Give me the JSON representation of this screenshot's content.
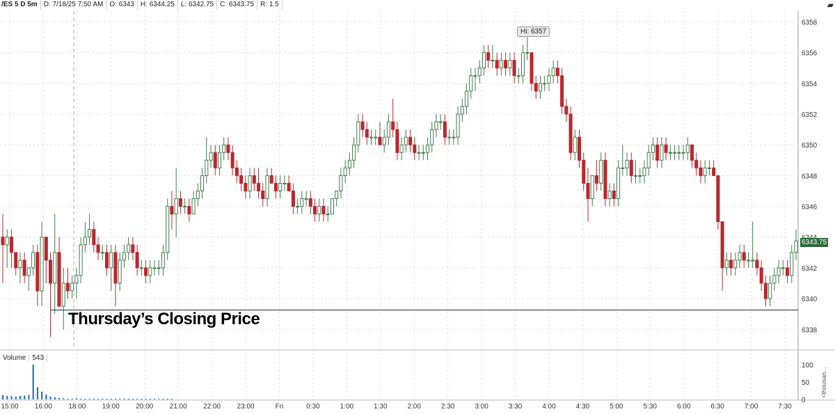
{
  "header": {
    "symbol": "/ES 5 D 5m",
    "date": "D: 7/18/25 7:50 AM",
    "open": "O: 6343",
    "high": "H: 6344.25",
    "low": "L: 6342.75",
    "close": "C: 6343.75",
    "range": "R: 1.5"
  },
  "hi_label": "Hi: 6357",
  "last_price": "6343.75",
  "annotation": "Thursday’s Closing Price",
  "volume": {
    "label": "Volume",
    "value": "543",
    "unit": "<thousan..."
  },
  "colors": {
    "up": "#3f7a4a",
    "down": "#b8282e",
    "volume": "#2f6fc4",
    "grid": "#d8d8d8"
  },
  "chart_data": {
    "type": "candlestick",
    "title": "",
    "y_ticks": [
      6338,
      6340,
      6342,
      6344,
      6346,
      6348,
      6350,
      6352,
      6354,
      6356,
      6358
    ],
    "ylim": [
      6336.7,
      6358.7
    ],
    "x_ticks": [
      "15:00",
      "16:00",
      "18:00",
      "19:00",
      "20:00",
      "21:00",
      "22:00",
      "23:00",
      "Fri",
      "0:30",
      "1:00",
      "1:30",
      "2:00",
      "2:30",
      "3:00",
      "3:30",
      "4:00",
      "4:30",
      "5:00",
      "5:30",
      "6:00",
      "6:30",
      "7:00",
      "7:30"
    ],
    "reference_line": {
      "price": 6339.25,
      "label": "Thursday’s Closing Price"
    },
    "session_break_after_tick": "16:00",
    "volume_ticks": [
      0,
      50,
      100
    ],
    "candles": [
      [
        6344.0,
        6345.5,
        6341.0,
        6343.5
      ],
      [
        6343.5,
        6344.5,
        6342.0,
        6344.0
      ],
      [
        6344.0,
        6344.5,
        6342.0,
        6343.0
      ],
      [
        6343.0,
        6343.0,
        6341.5,
        6342.0
      ],
      [
        6342.0,
        6343.0,
        6341.0,
        6342.5
      ],
      [
        6342.5,
        6343.0,
        6341.0,
        6341.5
      ],
      [
        6341.5,
        6342.0,
        6340.5,
        6342.0
      ],
      [
        6342.0,
        6343.5,
        6341.5,
        6343.0
      ],
      [
        6343.0,
        6343.5,
        6339.5,
        6340.5
      ],
      [
        6340.5,
        6345.0,
        6339.5,
        6344.0
      ],
      [
        6344.0,
        6344.0,
        6341.0,
        6342.5
      ],
      [
        6342.5,
        6343.0,
        6337.5,
        6341.0
      ],
      [
        6341.0,
        6345.5,
        6339.0,
        6343.0
      ],
      [
        6343.0,
        6344.0,
        6339.5,
        6339.5
      ],
      [
        6339.5,
        6342.0,
        6338.0,
        6341.0
      ],
      [
        6341.0,
        6342.0,
        6340.0,
        6340.5
      ],
      [
        6340.5,
        6341.5,
        6340.0,
        6341.0
      ],
      [
        6341.0,
        6342.0,
        6340.0,
        6341.5
      ],
      [
        6341.5,
        6344.0,
        6341.0,
        6343.5
      ],
      [
        6343.5,
        6345.0,
        6343.0,
        6344.0
      ],
      [
        6344.0,
        6345.5,
        6343.5,
        6344.5
      ],
      [
        6344.5,
        6345.0,
        6343.0,
        6343.5
      ],
      [
        6343.5,
        6344.0,
        6342.5,
        6343.0
      ],
      [
        6343.0,
        6343.5,
        6342.5,
        6343.0
      ],
      [
        6343.0,
        6343.5,
        6341.5,
        6342.0
      ],
      [
        6342.0,
        6343.5,
        6340.5,
        6343.0
      ],
      [
        6343.0,
        6343.5,
        6339.5,
        6341.0
      ],
      [
        6341.0,
        6343.0,
        6340.5,
        6342.5
      ],
      [
        6342.5,
        6343.5,
        6342.0,
        6343.0
      ],
      [
        6343.0,
        6344.0,
        6342.5,
        6343.5
      ],
      [
        6343.5,
        6344.0,
        6342.5,
        6343.0
      ],
      [
        6343.0,
        6343.5,
        6341.5,
        6342.0
      ],
      [
        6342.0,
        6342.5,
        6341.5,
        6342.0
      ],
      [
        6342.0,
        6342.5,
        6341.0,
        6341.5
      ],
      [
        6341.5,
        6342.5,
        6341.0,
        6342.0
      ],
      [
        6342.0,
        6342.5,
        6341.5,
        6342.0
      ],
      [
        6342.0,
        6342.5,
        6341.5,
        6342.0
      ],
      [
        6342.0,
        6343.5,
        6341.5,
        6343.0
      ],
      [
        6343.0,
        6346.5,
        6342.5,
        6346.0
      ],
      [
        6346.0,
        6347.0,
        6344.5,
        6345.5
      ],
      [
        6345.5,
        6348.5,
        6344.0,
        6346.5
      ],
      [
        6346.5,
        6347.0,
        6345.5,
        6346.0
      ],
      [
        6346.0,
        6346.5,
        6345.5,
        6346.0
      ],
      [
        6346.0,
        6346.5,
        6345.0,
        6345.5
      ],
      [
        6345.5,
        6347.0,
        6345.5,
        6346.5
      ],
      [
        6346.5,
        6347.5,
        6346.0,
        6347.0
      ],
      [
        6347.0,
        6348.5,
        6346.5,
        6348.0
      ],
      [
        6348.0,
        6350.5,
        6347.5,
        6349.0
      ],
      [
        6349.0,
        6350.0,
        6348.5,
        6349.5
      ],
      [
        6349.5,
        6350.0,
        6348.0,
        6348.5
      ],
      [
        6348.5,
        6350.0,
        6348.0,
        6349.5
      ],
      [
        6349.5,
        6350.5,
        6349.0,
        6350.0
      ],
      [
        6350.0,
        6350.5,
        6349.0,
        6349.5
      ],
      [
        6349.5,
        6350.0,
        6348.0,
        6348.5
      ],
      [
        6348.5,
        6349.0,
        6347.5,
        6348.0
      ],
      [
        6348.0,
        6348.5,
        6347.0,
        6347.5
      ],
      [
        6347.5,
        6348.0,
        6346.5,
        6347.0
      ],
      [
        6347.0,
        6348.5,
        6346.5,
        6348.0
      ],
      [
        6348.0,
        6348.5,
        6347.0,
        6347.5
      ],
      [
        6347.5,
        6348.5,
        6346.5,
        6347.0
      ],
      [
        6347.0,
        6347.5,
        6346.0,
        6346.5
      ],
      [
        6346.5,
        6348.5,
        6346.0,
        6348.0
      ],
      [
        6348.0,
        6348.5,
        6347.5,
        6347.5
      ],
      [
        6347.5,
        6348.0,
        6346.5,
        6347.0
      ],
      [
        6347.0,
        6348.0,
        6346.5,
        6347.5
      ],
      [
        6347.5,
        6348.0,
        6347.0,
        6347.5
      ],
      [
        6347.5,
        6348.0,
        6347.0,
        6347.0
      ],
      [
        6347.0,
        6347.5,
        6345.5,
        6346.0
      ],
      [
        6346.0,
        6346.5,
        6345.5,
        6346.0
      ],
      [
        6346.0,
        6347.0,
        6345.5,
        6346.5
      ],
      [
        6346.5,
        6347.0,
        6346.0,
        6346.5
      ],
      [
        6346.5,
        6347.0,
        6345.5,
        6346.0
      ],
      [
        6346.0,
        6346.5,
        6345.0,
        6345.5
      ],
      [
        6345.5,
        6346.5,
        6345.0,
        6346.0
      ],
      [
        6346.0,
        6346.5,
        6345.0,
        6345.5
      ],
      [
        6345.5,
        6346.0,
        6345.0,
        6345.5
      ],
      [
        6345.5,
        6346.5,
        6345.5,
        6346.5
      ],
      [
        6346.5,
        6347.0,
        6346.0,
        6347.0
      ],
      [
        6347.0,
        6348.5,
        6346.5,
        6348.0
      ],
      [
        6348.0,
        6349.0,
        6347.5,
        6348.5
      ],
      [
        6348.5,
        6349.5,
        6348.0,
        6349.0
      ],
      [
        6349.0,
        6350.5,
        6348.5,
        6350.0
      ],
      [
        6350.0,
        6352.0,
        6349.5,
        6351.5
      ],
      [
        6351.5,
        6352.0,
        6350.5,
        6351.0
      ],
      [
        6351.0,
        6351.5,
        6350.0,
        6350.5
      ],
      [
        6350.5,
        6351.0,
        6350.0,
        6350.5
      ],
      [
        6350.5,
        6351.0,
        6350.0,
        6350.5
      ],
      [
        6350.5,
        6351.5,
        6350.0,
        6350.0
      ],
      [
        6350.0,
        6351.0,
        6349.5,
        6350.5
      ],
      [
        6350.5,
        6352.0,
        6350.0,
        6351.5
      ],
      [
        6351.5,
        6353.0,
        6350.5,
        6351.0
      ],
      [
        6351.0,
        6351.5,
        6349.0,
        6349.5
      ],
      [
        6349.5,
        6350.5,
        6349.0,
        6350.0
      ],
      [
        6350.0,
        6351.0,
        6349.5,
        6350.5
      ],
      [
        6350.5,
        6351.0,
        6349.5,
        6350.0
      ],
      [
        6350.0,
        6350.5,
        6349.0,
        6349.5
      ],
      [
        6349.5,
        6350.0,
        6349.0,
        6349.5
      ],
      [
        6349.5,
        6350.0,
        6349.0,
        6349.5
      ],
      [
        6349.5,
        6350.5,
        6349.0,
        6350.0
      ],
      [
        6350.0,
        6351.5,
        6349.5,
        6351.0
      ],
      [
        6351.0,
        6352.0,
        6350.5,
        6351.5
      ],
      [
        6351.5,
        6352.0,
        6351.0,
        6351.5
      ],
      [
        6351.5,
        6352.0,
        6350.0,
        6350.5
      ],
      [
        6350.5,
        6351.0,
        6350.0,
        6350.5
      ],
      [
        6350.5,
        6351.0,
        6350.0,
        6350.5
      ],
      [
        6350.5,
        6352.5,
        6350.0,
        6352.0
      ],
      [
        6352.0,
        6353.0,
        6351.5,
        6352.5
      ],
      [
        6352.5,
        6354.0,
        6352.0,
        6353.5
      ],
      [
        6353.5,
        6355.0,
        6353.0,
        6354.5
      ],
      [
        6354.5,
        6355.0,
        6353.5,
        6354.5
      ],
      [
        6354.5,
        6355.5,
        6354.0,
        6355.0
      ],
      [
        6355.0,
        6356.5,
        6354.5,
        6356.0
      ],
      [
        6356.0,
        6356.5,
        6355.0,
        6355.5
      ],
      [
        6355.5,
        6356.5,
        6355.0,
        6355.5
      ],
      [
        6355.5,
        6356.0,
        6354.5,
        6355.0
      ],
      [
        6355.0,
        6356.0,
        6354.5,
        6355.5
      ],
      [
        6355.5,
        6356.0,
        6354.5,
        6355.0
      ],
      [
        6355.0,
        6356.0,
        6354.5,
        6355.5
      ],
      [
        6355.5,
        6356.0,
        6354.0,
        6354.5
      ],
      [
        6354.5,
        6355.0,
        6354.0,
        6354.5
      ],
      [
        6354.5,
        6356.5,
        6354.0,
        6356.0
      ],
      [
        6356.0,
        6357.0,
        6355.5,
        6356.0
      ],
      [
        6356.0,
        6356.0,
        6353.5,
        6354.0
      ],
      [
        6354.0,
        6354.5,
        6353.0,
        6353.5
      ],
      [
        6353.5,
        6354.5,
        6353.0,
        6354.0
      ],
      [
        6354.0,
        6354.5,
        6353.5,
        6354.0
      ],
      [
        6354.0,
        6355.0,
        6353.5,
        6354.5
      ],
      [
        6354.5,
        6355.5,
        6354.0,
        6355.0
      ],
      [
        6355.0,
        6355.5,
        6354.0,
        6354.5
      ],
      [
        6354.5,
        6355.0,
        6352.0,
        6352.5
      ],
      [
        6352.5,
        6353.0,
        6351.5,
        6352.0
      ],
      [
        6352.0,
        6352.5,
        6349.0,
        6349.5
      ],
      [
        6349.5,
        6351.0,
        6349.0,
        6350.5
      ],
      [
        6350.5,
        6351.0,
        6348.5,
        6349.0
      ],
      [
        6349.0,
        6349.5,
        6347.0,
        6347.5
      ],
      [
        6347.5,
        6348.5,
        6345.0,
        6346.5
      ],
      [
        6346.5,
        6348.0,
        6346.0,
        6348.0
      ],
      [
        6348.0,
        6349.0,
        6347.0,
        6347.5
      ],
      [
        6347.5,
        6349.5,
        6347.0,
        6349.0
      ],
      [
        6349.0,
        6349.5,
        6346.0,
        6346.5
      ],
      [
        6346.5,
        6347.5,
        6346.0,
        6347.0
      ],
      [
        6347.0,
        6347.5,
        6346.0,
        6346.5
      ],
      [
        6346.5,
        6349.0,
        6346.0,
        6348.5
      ],
      [
        6348.5,
        6350.0,
        6348.0,
        6348.5
      ],
      [
        6348.5,
        6349.5,
        6348.0,
        6349.0
      ],
      [
        6349.0,
        6349.5,
        6347.5,
        6348.0
      ],
      [
        6348.0,
        6349.0,
        6347.5,
        6348.0
      ],
      [
        6348.0,
        6348.5,
        6347.5,
        6348.0
      ],
      [
        6348.0,
        6349.0,
        6347.5,
        6348.5
      ],
      [
        6348.5,
        6350.0,
        6348.0,
        6349.5
      ],
      [
        6349.5,
        6350.5,
        6349.0,
        6350.0
      ],
      [
        6350.0,
        6350.5,
        6348.5,
        6349.0
      ],
      [
        6349.0,
        6350.5,
        6348.5,
        6350.0
      ],
      [
        6350.0,
        6350.5,
        6349.0,
        6349.5
      ],
      [
        6349.5,
        6350.0,
        6349.0,
        6349.5
      ],
      [
        6349.5,
        6350.0,
        6349.0,
        6349.5
      ],
      [
        6349.5,
        6350.0,
        6349.0,
        6349.5
      ],
      [
        6349.5,
        6350.0,
        6349.0,
        6349.5
      ],
      [
        6349.5,
        6350.5,
        6349.0,
        6350.0
      ],
      [
        6350.0,
        6350.0,
        6348.5,
        6349.0
      ],
      [
        6349.0,
        6349.5,
        6348.0,
        6348.5
      ],
      [
        6348.5,
        6349.0,
        6347.5,
        6348.0
      ],
      [
        6348.0,
        6349.0,
        6347.5,
        6348.5
      ],
      [
        6348.5,
        6349.0,
        6348.0,
        6348.5
      ],
      [
        6348.5,
        6349.0,
        6348.0,
        6348.0
      ],
      [
        6348.0,
        6348.0,
        6344.5,
        6345.0
      ],
      [
        6345.0,
        6345.0,
        6340.5,
        6342.0
      ],
      [
        6342.0,
        6343.0,
        6341.5,
        6342.5
      ],
      [
        6342.5,
        6343.0,
        6341.5,
        6342.0
      ],
      [
        6342.0,
        6343.0,
        6341.5,
        6342.5
      ],
      [
        6342.5,
        6343.5,
        6342.0,
        6343.0
      ],
      [
        6343.0,
        6343.5,
        6342.0,
        6342.5
      ],
      [
        6342.5,
        6343.0,
        6342.0,
        6342.5
      ],
      [
        6342.5,
        6345.0,
        6342.0,
        6342.5
      ],
      [
        6342.5,
        6343.0,
        6341.5,
        6342.0
      ],
      [
        6342.0,
        6342.5,
        6340.5,
        6341.0
      ],
      [
        6341.0,
        6341.5,
        6339.5,
        6340.0
      ],
      [
        6340.0,
        6341.5,
        6339.5,
        6341.0
      ],
      [
        6341.0,
        6342.0,
        6340.5,
        6341.5
      ],
      [
        6341.5,
        6342.5,
        6341.0,
        6342.0
      ],
      [
        6342.0,
        6342.5,
        6341.5,
        6342.0
      ],
      [
        6342.0,
        6342.5,
        6341.0,
        6341.5
      ],
      [
        6341.5,
        6343.5,
        6341.0,
        6343.0
      ],
      [
        6343.0,
        6344.5,
        6342.5,
        6343.75
      ]
    ],
    "volume": [
      12,
      10,
      9,
      8,
      10,
      11,
      13,
      100,
      35,
      22,
      14,
      8,
      6,
      4,
      3,
      2,
      2,
      3,
      2,
      2,
      2,
      2,
      2,
      2,
      2,
      2,
      2,
      2,
      2,
      2,
      2,
      2,
      2,
      2,
      2,
      2,
      2,
      2,
      2,
      2
    ]
  }
}
